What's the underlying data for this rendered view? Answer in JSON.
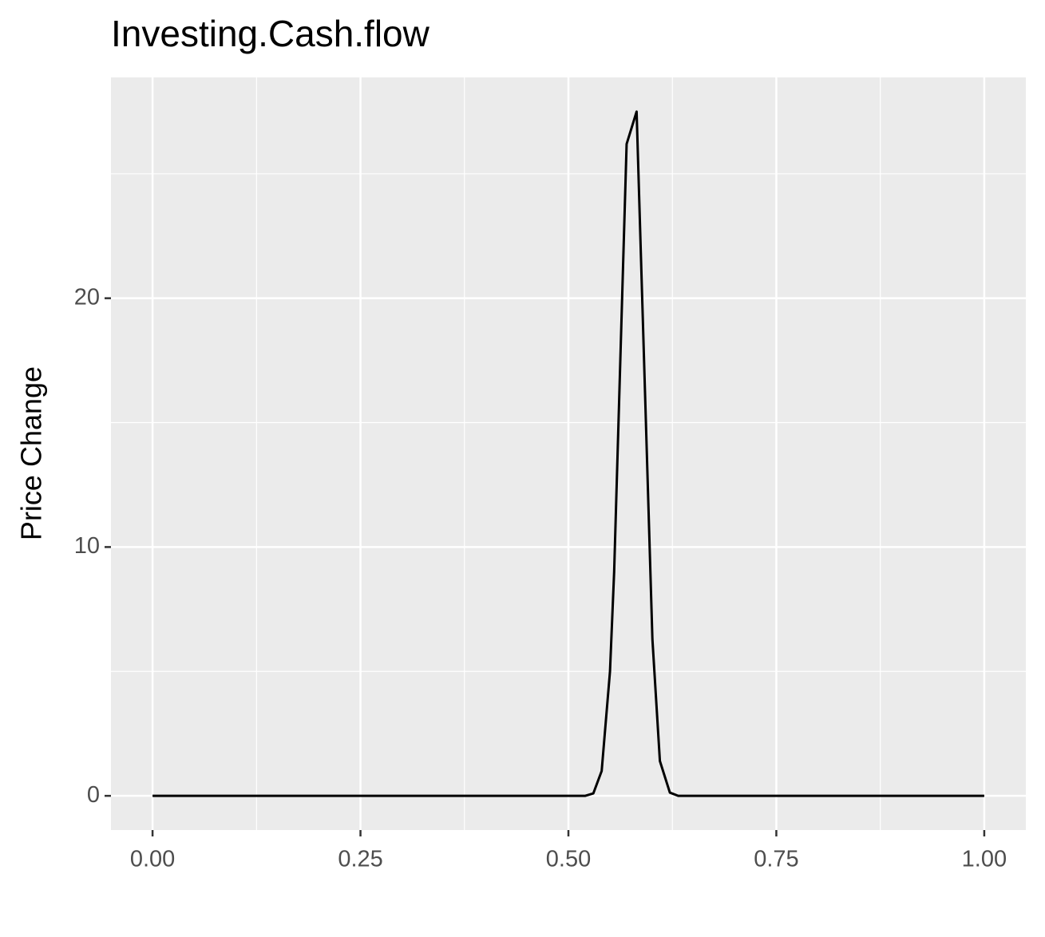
{
  "chart_data": {
    "type": "line",
    "title": "Investing.Cash.flow",
    "y_label": "Price Change",
    "x": [
      0,
      0.52,
      0.53,
      0.54,
      0.55,
      0.555,
      0.57,
      0.582,
      0.601,
      0.61,
      0.622,
      0.632,
      1
    ],
    "series": [
      {
        "name": "Investing.Cash.flow",
        "color": "#000000",
        "values": [
          0,
          0,
          0.1,
          1.0,
          5.0,
          9.0,
          26.2,
          27.5,
          6.3,
          1.4,
          0.13,
          0,
          0
        ]
      }
    ],
    "xlim": [
      -0.05,
      1.05
    ],
    "ylim": [
      -1.375,
      28.875
    ],
    "xticks": [
      {
        "value": 0,
        "label": "0.00"
      },
      {
        "value": 0.25,
        "label": "0.25"
      },
      {
        "value": 0.5,
        "label": "0.50"
      },
      {
        "value": 0.75,
        "label": "0.75"
      },
      {
        "value": 1,
        "label": "1.00"
      }
    ],
    "yticks": [
      0,
      10,
      20
    ],
    "minor_xticks": [
      0.125,
      0.375,
      0.625,
      0.875
    ],
    "minor_yticks": [
      5,
      15,
      25
    ],
    "grid": true
  }
}
